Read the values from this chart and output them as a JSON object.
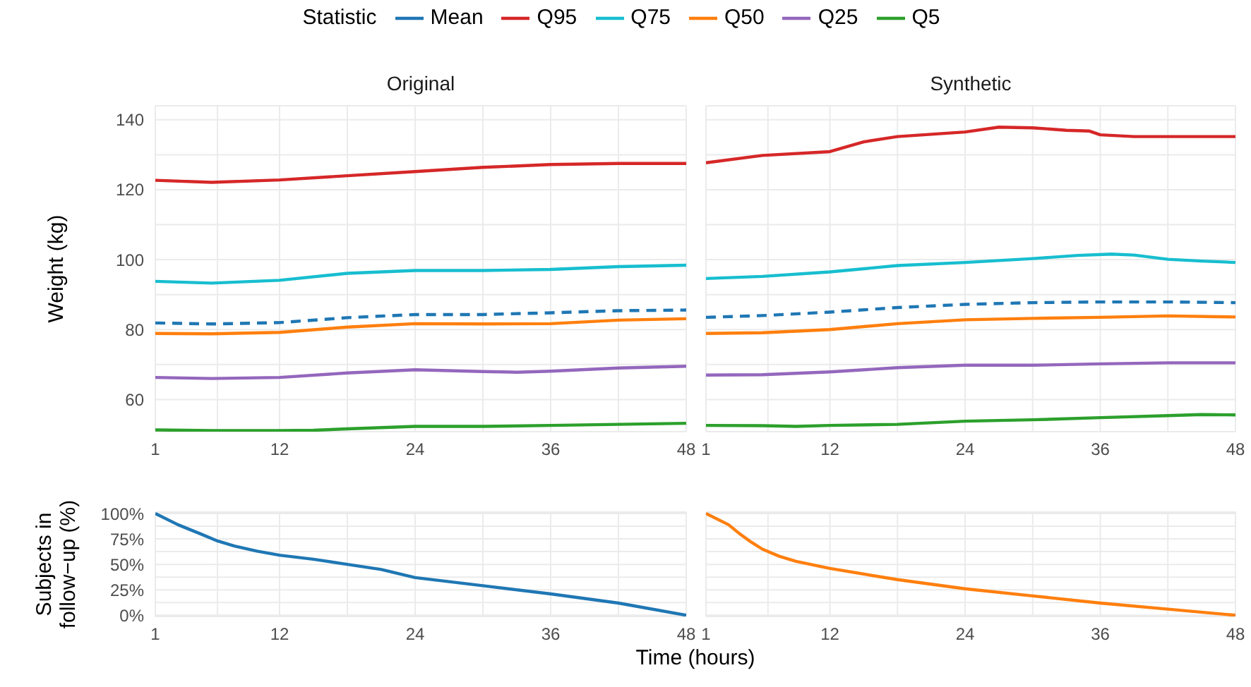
{
  "chart_data": [
    {
      "type": "line",
      "title": "Original",
      "ylabel": "Weight (kg)",
      "legend_title": "Statistic",
      "legend": "top",
      "grid": true,
      "xlim": [
        1,
        48
      ],
      "xticks": [
        1,
        {
          "value": 6.5,
          "label": null
        },
        12,
        {
          "value": 18,
          "label": null
        },
        24,
        {
          "value": 30,
          "label": null
        },
        36,
        {
          "value": 42,
          "label": null
        },
        48
      ],
      "ylim": [
        50.8,
        144
      ],
      "yticks": [
        60,
        {
          "value": 70,
          "label": null
        },
        80,
        {
          "value": 90,
          "label": null
        },
        100,
        {
          "value": 110,
          "label": null
        },
        120,
        {
          "value": 130,
          "label": null
        },
        140
      ],
      "series": [
        {
          "name": "Mean",
          "color": "#1f77b4",
          "line_style": "dashed",
          "x": [
            1,
            6,
            12,
            18,
            24,
            30,
            36,
            42,
            48
          ],
          "values": [
            81.9,
            81.6,
            82.0,
            83.4,
            84.3,
            84.3,
            84.8,
            85.4,
            85.6
          ]
        },
        {
          "name": "Q95",
          "color": "#d62728",
          "x": [
            1,
            6,
            12,
            18,
            24,
            30,
            36,
            42,
            48
          ],
          "values": [
            122.7,
            122.1,
            122.8,
            124.0,
            125.2,
            126.4,
            127.2,
            127.5,
            127.5
          ]
        },
        {
          "name": "Q75",
          "color": "#17becf",
          "x": [
            1,
            6,
            12,
            18,
            24,
            30,
            36,
            42,
            48
          ],
          "values": [
            93.8,
            93.3,
            94.1,
            96.1,
            96.9,
            96.9,
            97.2,
            98.0,
            98.4
          ]
        },
        {
          "name": "Q50",
          "color": "#ff7f0e",
          "x": [
            1,
            6,
            12,
            18,
            24,
            30,
            36,
            42,
            48
          ],
          "values": [
            78.9,
            78.8,
            79.2,
            80.7,
            81.7,
            81.6,
            81.7,
            82.7,
            83.1
          ]
        },
        {
          "name": "Q25",
          "color": "#9467bd",
          "x": [
            1,
            6,
            12,
            18,
            24,
            30,
            33,
            36,
            42,
            48
          ],
          "values": [
            66.3,
            66.0,
            66.3,
            67.6,
            68.5,
            68.0,
            67.8,
            68.1,
            69.0,
            69.5
          ]
        },
        {
          "name": "Q5",
          "color": "#2ca02c",
          "x": [
            1,
            6,
            12,
            15,
            18,
            24,
            30,
            36,
            42,
            48
          ],
          "values": [
            51.3,
            51.1,
            51.1,
            51.2,
            51.6,
            52.3,
            52.3,
            52.6,
            52.9,
            53.2
          ]
        }
      ]
    },
    {
      "type": "line",
      "title": "Synthetic",
      "grid": true,
      "tick_labels": "x",
      "xlim": [
        1,
        48
      ],
      "xticks": [
        1,
        {
          "value": 6.5,
          "label": null
        },
        12,
        {
          "value": 18,
          "label": null
        },
        24,
        {
          "value": 30,
          "label": null
        },
        36,
        {
          "value": 42,
          "label": null
        },
        48
      ],
      "ylim": [
        50.8,
        144
      ],
      "yticks": [
        60,
        {
          "value": 70,
          "label": null
        },
        80,
        {
          "value": 90,
          "label": null
        },
        100,
        {
          "value": 110,
          "label": null
        },
        120,
        {
          "value": 130,
          "label": null
        },
        140
      ],
      "series": [
        {
          "name": "Mean",
          "color": "#1f77b4",
          "line_style": "dashed",
          "x": [
            1,
            6,
            12,
            18,
            24,
            30,
            36,
            42,
            48
          ],
          "values": [
            83.5,
            84.0,
            85.0,
            86.3,
            87.2,
            87.7,
            87.9,
            87.9,
            87.7
          ]
        },
        {
          "name": "Q95",
          "color": "#d62728",
          "x": [
            1,
            6,
            12,
            15,
            18,
            24,
            27,
            30,
            33,
            35,
            36,
            39,
            42,
            48
          ],
          "values": [
            127.7,
            129.8,
            130.9,
            133.7,
            135.2,
            136.5,
            137.9,
            137.7,
            137.0,
            136.8,
            135.7,
            135.2,
            135.2,
            135.2
          ]
        },
        {
          "name": "Q75",
          "color": "#17becf",
          "x": [
            1,
            6,
            12,
            18,
            24,
            30,
            34,
            37,
            39,
            42,
            45,
            48
          ],
          "values": [
            94.6,
            95.2,
            96.5,
            98.3,
            99.2,
            100.3,
            101.2,
            101.6,
            101.3,
            100.1,
            99.6,
            99.2
          ]
        },
        {
          "name": "Q50",
          "color": "#ff7f0e",
          "x": [
            1,
            6,
            12,
            18,
            24,
            30,
            36,
            42,
            48
          ],
          "values": [
            78.9,
            79.1,
            80.0,
            81.7,
            82.8,
            83.2,
            83.5,
            83.9,
            83.6
          ]
        },
        {
          "name": "Q25",
          "color": "#9467bd",
          "x": [
            1,
            6,
            12,
            18,
            24,
            30,
            36,
            42,
            48
          ],
          "values": [
            67.0,
            67.1,
            67.9,
            69.1,
            69.8,
            69.8,
            70.2,
            70.5,
            70.5
          ]
        },
        {
          "name": "Q5",
          "color": "#2ca02c",
          "x": [
            1,
            6,
            9,
            12,
            18,
            24,
            30,
            36,
            42,
            45,
            48
          ],
          "values": [
            52.6,
            52.5,
            52.3,
            52.6,
            52.9,
            53.8,
            54.2,
            54.8,
            55.4,
            55.7,
            55.6
          ]
        }
      ]
    },
    {
      "type": "line",
      "ylabel": "Subjects in follow−up (%)",
      "xlabel": "Time (hours)",
      "grid": true,
      "xlim": [
        1,
        48
      ],
      "xticks": [
        1,
        {
          "value": 6.5,
          "label": null
        },
        12,
        {
          "value": 18,
          "label": null
        },
        24,
        {
          "value": 30,
          "label": null
        },
        36,
        {
          "value": 42,
          "label": null
        },
        48
      ],
      "ylim": [
        -1.2,
        101.4
      ],
      "yticks": [
        {
          "value": 0,
          "label": "0%"
        },
        {
          "value": 12.5,
          "label": null
        },
        {
          "value": 25,
          "label": "25%"
        },
        {
          "value": 37.5,
          "label": null
        },
        {
          "value": 50,
          "label": "50%"
        },
        {
          "value": 62.5,
          "label": null
        },
        {
          "value": 75,
          "label": "75%"
        },
        {
          "value": 87.5,
          "label": null
        },
        {
          "value": 100,
          "label": "100%"
        }
      ],
      "series": [
        {
          "color": "#1f77b4",
          "x": [
            1,
            3,
            5,
            6.5,
            8,
            10,
            12,
            15,
            18,
            21,
            24,
            27,
            30,
            36,
            42,
            48
          ],
          "values": [
            100,
            89,
            80,
            73,
            68,
            63,
            59,
            55,
            50,
            45,
            37,
            33,
            29,
            21,
            12,
            0
          ]
        }
      ]
    },
    {
      "type": "line",
      "grid": true,
      "tick_labels": "x",
      "xlim": [
        1,
        48
      ],
      "xticks": [
        1,
        {
          "value": 6.5,
          "label": null
        },
        12,
        {
          "value": 18,
          "label": null
        },
        24,
        {
          "value": 30,
          "label": null
        },
        36,
        {
          "value": 42,
          "label": null
        },
        48
      ],
      "ylim": [
        -1.2,
        101.4
      ],
      "yticks": [
        0,
        {
          "value": 12.5,
          "label": null
        },
        25,
        {
          "value": 37.5,
          "label": null
        },
        50,
        {
          "value": 62.5,
          "label": null
        },
        75,
        {
          "value": 87.5,
          "label": null
        },
        100
      ],
      "series": [
        {
          "color": "#ff7f0e",
          "x": [
            1,
            3,
            4,
            5,
            6,
            7.5,
            9,
            12,
            18,
            24,
            30,
            36,
            42,
            48
          ],
          "values": [
            100,
            89,
            80,
            72,
            65,
            58,
            53,
            46,
            35,
            26,
            19,
            12,
            6,
            0
          ]
        }
      ]
    }
  ]
}
